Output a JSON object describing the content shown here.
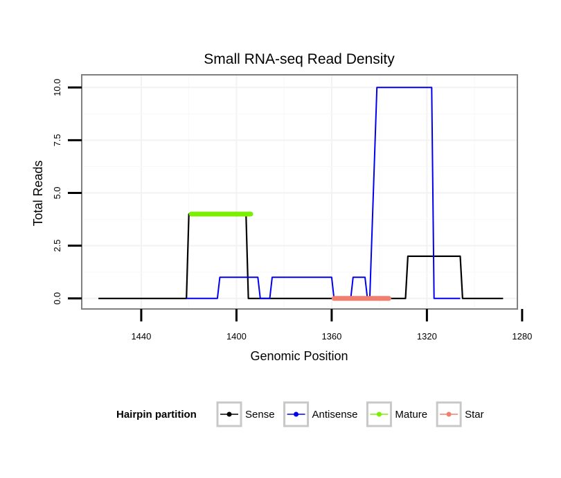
{
  "chart_data": {
    "type": "line",
    "title": "Small RNA-seq Read Density",
    "xlabel": "Genomic Position",
    "ylabel": "Total Reads",
    "x_reversed": true,
    "xlim": [
      1465,
      1282
    ],
    "ylim": [
      -0.5,
      10.6
    ],
    "x_ticks": [
      1440,
      1400,
      1360,
      1320,
      1280
    ],
    "x_tick_labels": [
      "1440",
      "1400",
      "1360",
      "1320",
      "1280"
    ],
    "y_ticks": [
      0,
      2.5,
      5,
      7.5,
      10
    ],
    "y_tick_labels": [
      "0.0",
      "2.5",
      "5.0",
      "7.5",
      "10.0"
    ],
    "grid": true,
    "legend_title": "Hairpin partition",
    "legend_position": "bottom",
    "series": [
      {
        "name": "Sense",
        "color": "#000000",
        "stroke": 2.2,
        "x": [
          1458,
          1421,
          1420,
          1396,
          1395,
          1329,
          1328,
          1306,
          1305,
          1288
        ],
        "y": [
          0,
          0,
          4,
          4,
          0,
          0,
          2,
          2,
          0,
          0
        ]
      },
      {
        "name": "Antisense",
        "color": "#0000ee",
        "stroke": 2,
        "x": [
          1421,
          1408,
          1407,
          1391,
          1390,
          1386,
          1385,
          1360,
          1359,
          1352,
          1351,
          1346,
          1345,
          1344,
          1341,
          1318,
          1317,
          1306
        ],
        "y": [
          0,
          0,
          1,
          1,
          0,
          0,
          1,
          1,
          0,
          0,
          1,
          1,
          0,
          0,
          10,
          10,
          0,
          0
        ]
      },
      {
        "name": "Mature",
        "color": "#7cee00",
        "stroke": 7,
        "x": [
          1419,
          1394
        ],
        "y": [
          4,
          4
        ]
      },
      {
        "name": "Star",
        "color": "#f07f70",
        "stroke": 7,
        "x": [
          1359,
          1336
        ],
        "y": [
          0,
          0
        ]
      }
    ]
  }
}
